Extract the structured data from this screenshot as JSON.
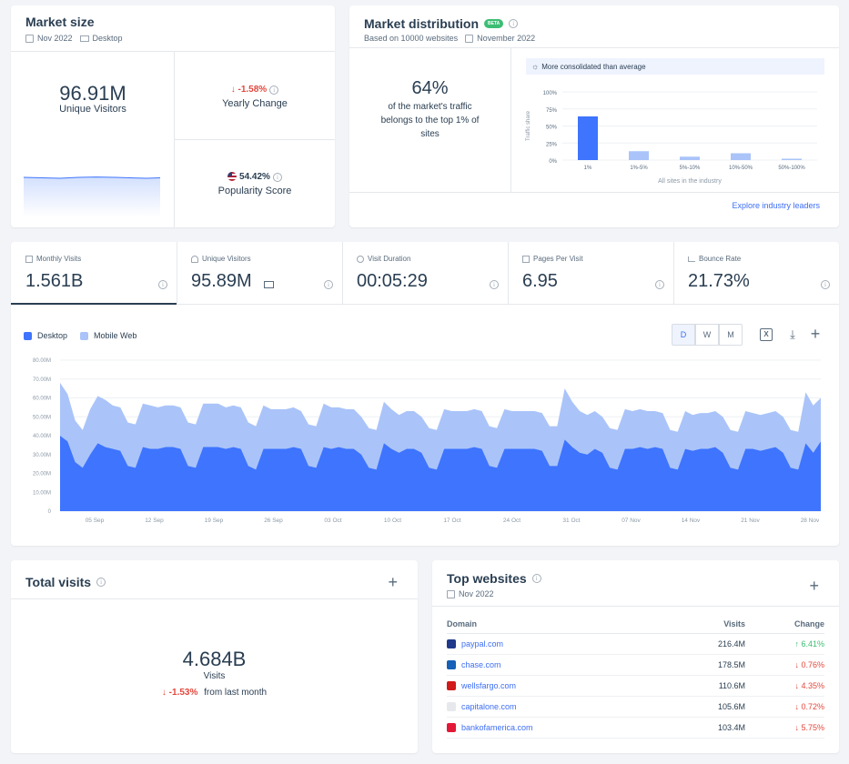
{
  "market_size": {
    "title": "Market size",
    "date": "Nov 2022",
    "device": "Desktop",
    "value": "96.91M",
    "value_label": "Unique Visitors",
    "yearly_change": "↓ -1.58%",
    "yearly_change_label": "Yearly Change",
    "popularity": "54.42%",
    "popularity_label": "Popularity Score"
  },
  "market_distribution": {
    "title": "Market distribution",
    "badge": "BETA",
    "based_on": "Based on 10000 websites",
    "date": "November 2022",
    "percent": "64%",
    "description": "of the market's traffic belongs to the top 1% of sites",
    "note": "More consolidated than average",
    "explore_link": "Explore industry leaders",
    "chart_data": {
      "type": "bar",
      "categories": [
        "1%",
        "1%-5%",
        "5%-10%",
        "10%-50%",
        "50%-100%"
      ],
      "values": [
        64,
        13,
        5,
        10,
        2
      ],
      "ylabel": "Traffic share",
      "xlabel": "All sites in the industry",
      "yticks": [
        "100%",
        "75%",
        "50%",
        "25%",
        "0%"
      ],
      "ylim": [
        0,
        100
      ],
      "colors": [
        "#3e74fe",
        "#aac4f9"
      ]
    }
  },
  "metrics": [
    {
      "label": "Monthly Visits",
      "value": "1.561B"
    },
    {
      "label": "Unique Visitors",
      "value": "95.89M"
    },
    {
      "label": "Visit Duration",
      "value": "00:05:29"
    },
    {
      "label": "Pages Per Visit",
      "value": "6.95"
    },
    {
      "label": "Bounce Rate",
      "value": "21.73%"
    }
  ],
  "traffic_chart": {
    "legend_desktop": "Desktop",
    "legend_mobile": "Mobile Web",
    "granularity": [
      "D",
      "W",
      "M"
    ],
    "selected_granularity": "D",
    "chart_data": {
      "type": "area",
      "stacked": true,
      "yticks": [
        "80.00M",
        "70.00M",
        "60.00M",
        "50.00M",
        "40.00M",
        "30.00M",
        "20.00M",
        "10.00M",
        "0"
      ],
      "ylim": [
        0,
        80
      ],
      "xticks": [
        "05 Sep",
        "12 Sep",
        "19 Sep",
        "26 Sep",
        "03 Oct",
        "10 Oct",
        "17 Oct",
        "24 Oct",
        "31 Oct",
        "07 Nov",
        "14 Nov",
        "21 Nov",
        "28 Nov"
      ],
      "series": [
        {
          "name": "Desktop",
          "color": "#3e74fe",
          "values": [
            40,
            37,
            26,
            23,
            30,
            36,
            34,
            33,
            32,
            24,
            23,
            34,
            33,
            33,
            34,
            34,
            33,
            24,
            23,
            34,
            34,
            34,
            33,
            34,
            33,
            24,
            22,
            33,
            33,
            33,
            33,
            34,
            33,
            24,
            23,
            34,
            33,
            34,
            33,
            33,
            30,
            23,
            22,
            36,
            33,
            31,
            33,
            33,
            31,
            23,
            22,
            33,
            33,
            33,
            33,
            34,
            33,
            24,
            23,
            33,
            33,
            33,
            33,
            33,
            32,
            24,
            24,
            38,
            34,
            31,
            30,
            33,
            31,
            23,
            22,
            33,
            33,
            34,
            33,
            34,
            33,
            23,
            22,
            33,
            32,
            33,
            33,
            34,
            31,
            23,
            22,
            33,
            33,
            32,
            33,
            34,
            31,
            23,
            22,
            36,
            31,
            37
          ]
        },
        {
          "name": "Mobile Web",
          "color": "#aac4f9",
          "values": [
            28,
            25,
            22,
            20,
            24,
            25,
            25,
            23,
            23,
            23,
            23,
            23,
            23,
            22,
            22,
            22,
            22,
            23,
            23,
            23,
            23,
            23,
            22,
            22,
            22,
            23,
            23,
            23,
            21,
            21,
            21,
            21,
            20,
            22,
            22,
            23,
            22,
            21,
            21,
            21,
            20,
            21,
            21,
            22,
            21,
            20,
            20,
            20,
            19,
            21,
            21,
            21,
            20,
            20,
            20,
            20,
            20,
            21,
            21,
            21,
            20,
            20,
            20,
            20,
            20,
            21,
            21,
            27,
            24,
            22,
            21,
            20,
            19,
            21,
            21,
            21,
            20,
            20,
            20,
            19,
            19,
            20,
            20,
            20,
            19,
            19,
            19,
            19,
            19,
            20,
            20,
            20,
            19,
            19,
            19,
            19,
            19,
            20,
            20,
            27,
            25,
            23
          ]
        }
      ]
    }
  },
  "total_visits": {
    "title": "Total visits",
    "value": "4.684B",
    "value_label": "Visits",
    "change": "↓ -1.53%",
    "change_label": "from last month"
  },
  "top_websites": {
    "title": "Top websites",
    "date": "Nov 2022",
    "headers": {
      "domain": "Domain",
      "visits": "Visits",
      "change": "Change"
    },
    "rows": [
      {
        "domain": "paypal.com",
        "visits": "216.4M",
        "change": "↑ 6.41%",
        "dir": "up",
        "icon": "paypal-logo-icon",
        "iconColor": "#1f3a8a"
      },
      {
        "domain": "chase.com",
        "visits": "178.5M",
        "change": "↓ 0.76%",
        "dir": "down",
        "icon": "chase-logo-icon",
        "iconColor": "#1660b7"
      },
      {
        "domain": "wellsfargo.com",
        "visits": "110.6M",
        "change": "↓ 4.35%",
        "dir": "down",
        "icon": "wellsfargo-logo-icon",
        "iconColor": "#d11a1a"
      },
      {
        "domain": "capitalone.com",
        "visits": "105.6M",
        "change": "↓ 0.72%",
        "dir": "down",
        "icon": "capitalone-logo-icon",
        "iconColor": "#e6e8ec"
      },
      {
        "domain": "bankofamerica.com",
        "visits": "103.4M",
        "change": "↓ 5.75%",
        "dir": "down",
        "icon": "bankofamerica-logo-icon",
        "iconColor": "#e31837"
      }
    ]
  }
}
